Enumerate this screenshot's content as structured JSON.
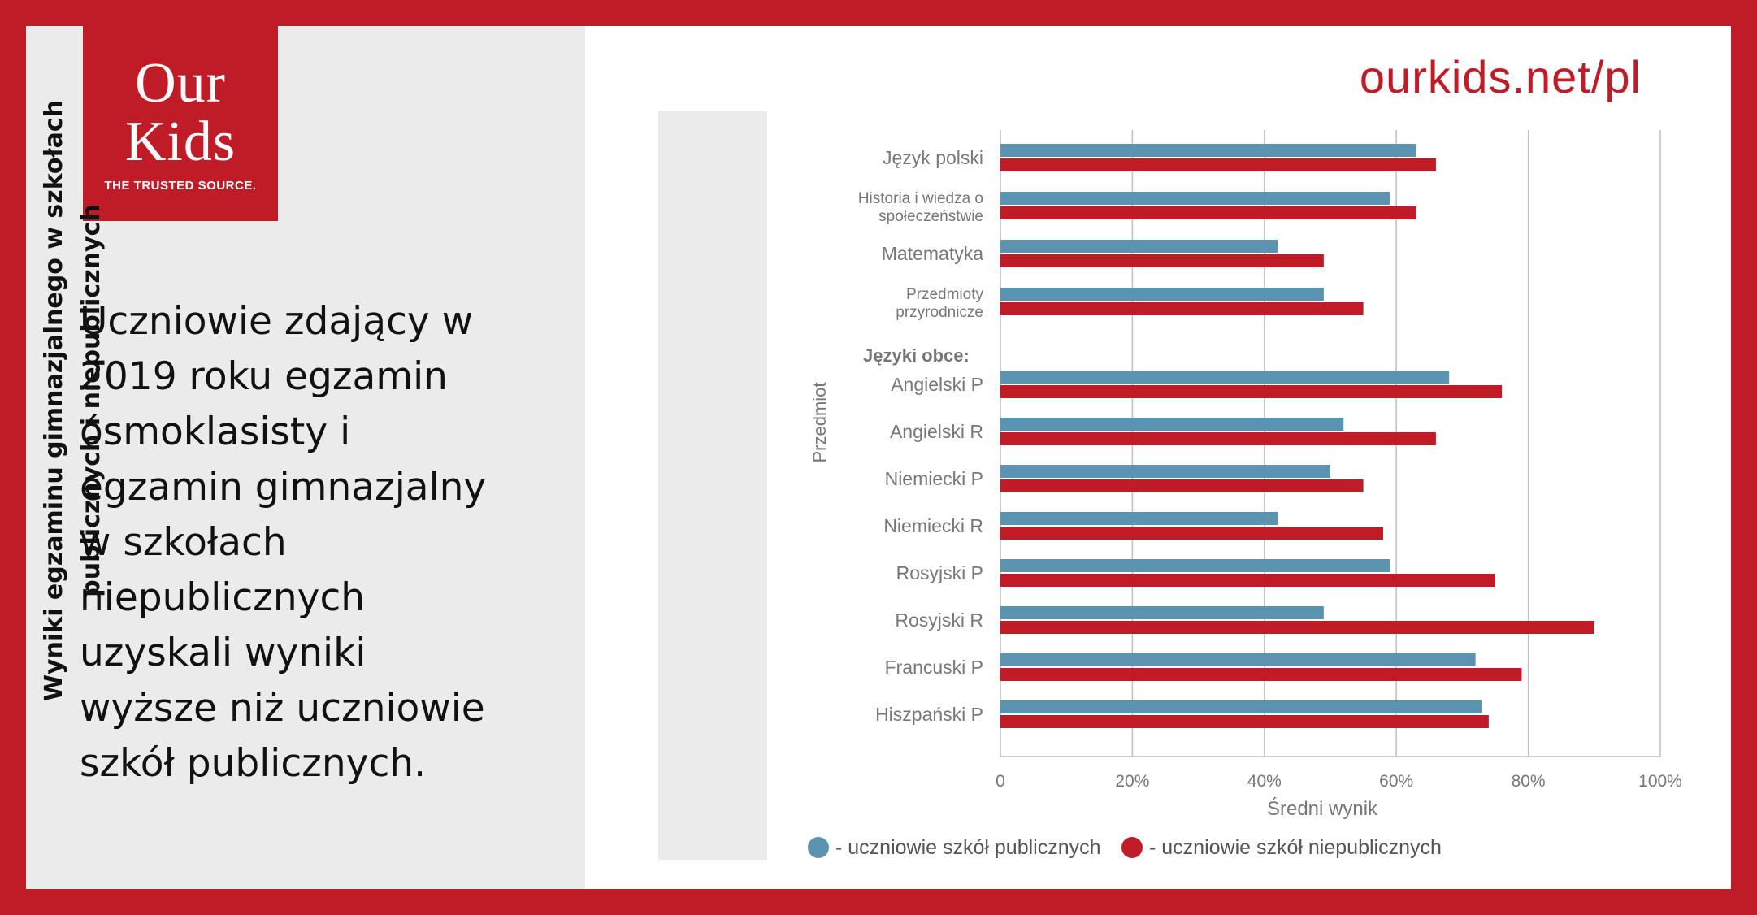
{
  "brand": {
    "line1": "Our",
    "line2": "Kids",
    "tagline": "THE TRUSTED SOURCE."
  },
  "headline": "Uczniowie zdający w\n2019 roku egzamin\nósmoklasisty i\negzamin gimnazjalny\nw szkołach\nniepublicznych\nuzyskali wyniki\nwyższe niż uczniowie\nszkół publicznych.",
  "site_url": "ourkids.net/pl",
  "chart_title": "Wyniki egzaminu gimnazjalnego w szkołach\npublicznych i niepublicznych",
  "colors": {
    "frame": "#c01c27",
    "public": "#5b94b1",
    "private": "#c01c27",
    "grid": "#bfbfbf",
    "label": "#777777"
  },
  "chart_data": {
    "type": "bar",
    "orientation": "horizontal",
    "categories": [
      "Język polski",
      "Historia i wiedza o społeczeństwie",
      "Matematyka",
      "Przedmioty przyrodnicze",
      "Angielski P",
      "Angielski R",
      "Niemiecki P",
      "Niemiecki R",
      "Rosyjski P",
      "Rosyjski R",
      "Francuski P",
      "Hiszpański P"
    ],
    "group_header": "Języki obce:",
    "series": [
      {
        "name": "- uczniowie szkół publicznych",
        "values": [
          63,
          59,
          42,
          49,
          68,
          52,
          50,
          42,
          59,
          49,
          72,
          73
        ]
      },
      {
        "name": "- uczniowie szkół niepublicznych",
        "values": [
          66,
          63,
          49,
          55,
          76,
          66,
          55,
          58,
          75,
          90,
          79,
          74
        ]
      }
    ],
    "xlabel": "Średni wynik",
    "ylabel": "Przedmiot",
    "xlim": [
      0,
      100
    ],
    "xticks": [
      "0",
      "20%",
      "40%",
      "60%",
      "80%",
      "100%"
    ],
    "grid": true,
    "legend": "bottom"
  }
}
